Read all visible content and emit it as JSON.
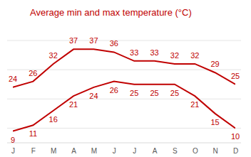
{
  "chart_data": {
    "type": "line",
    "title": "Average min and max temperature (°C)",
    "categories": [
      "J",
      "F",
      "M",
      "A",
      "M",
      "J",
      "J",
      "A",
      "S",
      "O",
      "N",
      "D"
    ],
    "series": [
      {
        "color": "#c00000",
        "values": [
          24,
          26,
          32,
          37,
          37,
          36,
          33,
          33,
          32,
          32,
          29,
          25
        ]
      },
      {
        "color": "#c00000",
        "values": [
          9,
          11,
          16,
          21,
          24,
          26,
          25,
          25,
          25,
          21,
          15,
          10
        ]
      }
    ],
    "ylim": [
      5,
      40
    ],
    "yticks": [
      10,
      20,
      30,
      40
    ],
    "grid": true,
    "data_labels": true,
    "tick_labels": "x"
  }
}
